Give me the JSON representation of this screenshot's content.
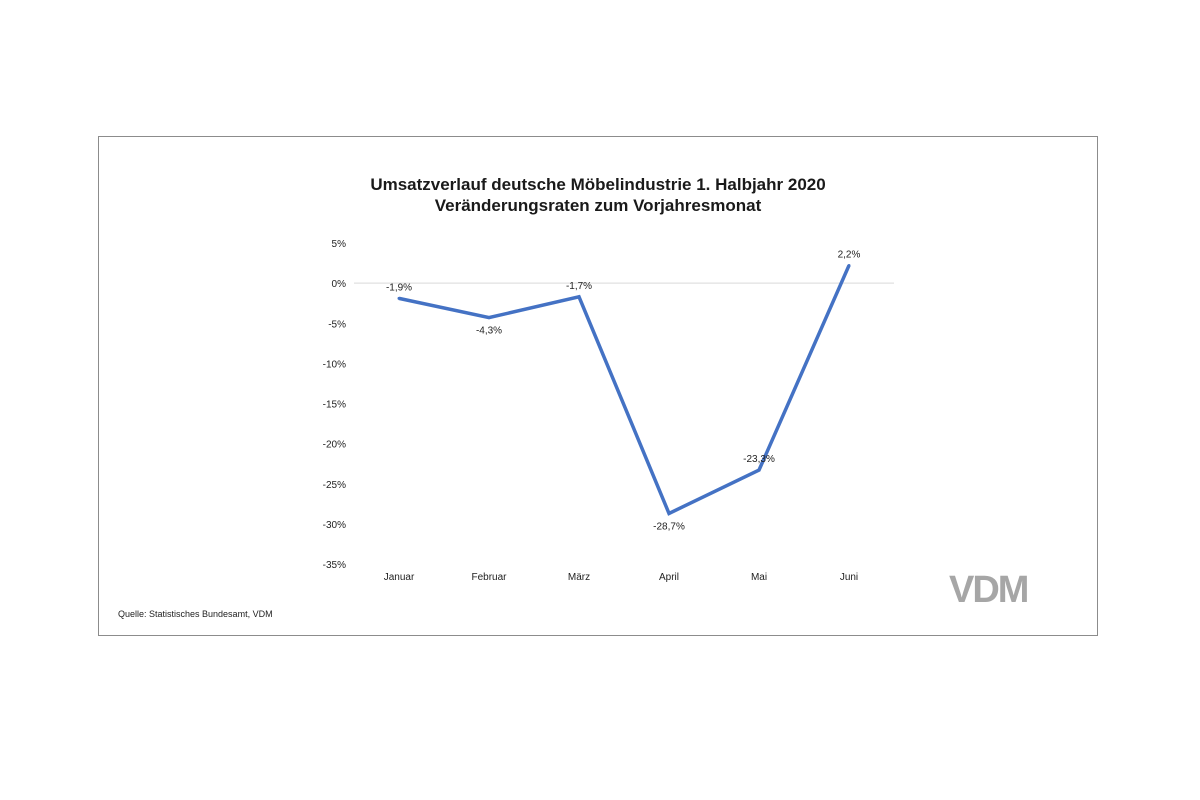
{
  "chart_data": {
    "type": "line",
    "title": "Umsatzverlauf deutsche Möbelindustrie 1. Halbjahr 2020",
    "subtitle": "Veränderungsraten zum Vorjahresmonat",
    "categories": [
      "Januar",
      "Februar",
      "März",
      "April",
      "Mai",
      "Juni"
    ],
    "values": [
      -1.9,
      -4.3,
      -1.7,
      -28.7,
      -23.3,
      2.2
    ],
    "data_labels": [
      "-1,9%",
      "-4,3%",
      "-1,7%",
      "-28,7%",
      "-23,3%",
      "2,2%"
    ],
    "yticks": [
      5,
      0,
      -5,
      -10,
      -15,
      -20,
      -25,
      -30,
      -35
    ],
    "ytick_labels": [
      "5%",
      "0%",
      "-5%",
      "-10%",
      "-15%",
      "-20%",
      "-25%",
      "-30%",
      "-35%"
    ],
    "ylim": [
      -35,
      5
    ],
    "grid": false,
    "zero_line": true,
    "line_color": "#4472c4"
  },
  "source": "Quelle: Statistisches Bundesamt, VDM",
  "logo": "VDM"
}
